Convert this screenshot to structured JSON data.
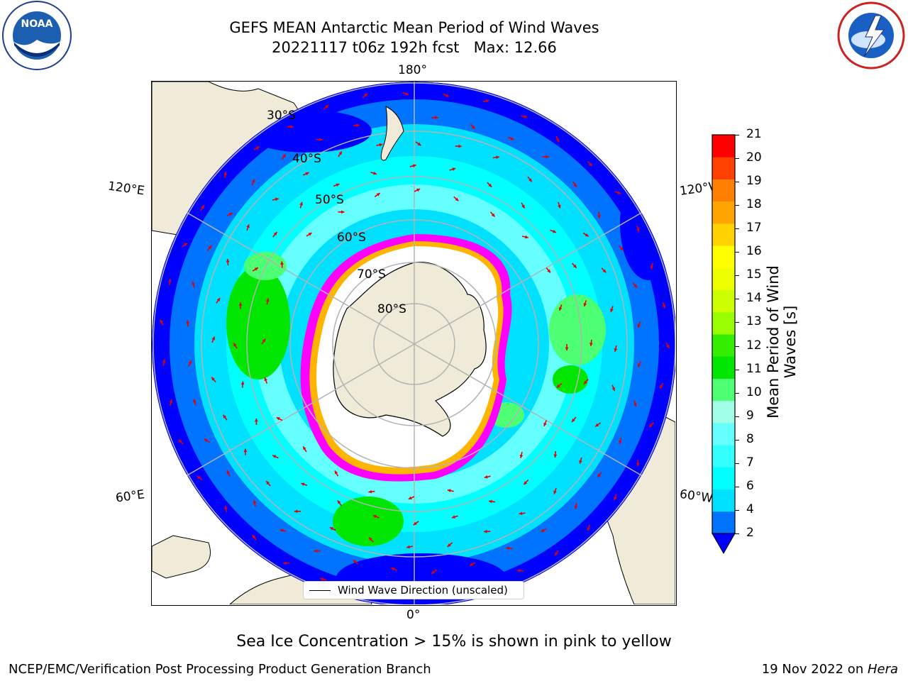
{
  "header": {
    "title_line1": "GEFS MEAN Antarctic Mean Period of Wind Waves",
    "title_line2": "20221117 t06z 192h fcst   Max: 12.66"
  },
  "logos": {
    "left": {
      "icon": "noaa-logo",
      "text": "NOAA",
      "ring_text": "NATIONAL OCEANIC AND ATMOSPHERIC ADMINISTRATION · U.S. DEPARTMENT OF COMMERCE"
    },
    "right": {
      "icon": "nws-logo",
      "ring_text": "NATIONAL WEATHER SERVICE"
    }
  },
  "map": {
    "projection": "south-polar-stereographic",
    "lon_labels": {
      "top": "180°",
      "bottom": "0°",
      "upper_left": "120°E",
      "upper_right": "120°W",
      "lower_left": "60°E",
      "lower_right": "60°W"
    },
    "lat_labels": [
      "30°S",
      "40°S",
      "50°S",
      "60°S",
      "70°S",
      "80°S"
    ],
    "colors": {
      "land": "#efebd8",
      "ocean_dark": "#0000ff",
      "ocean_mid": "#0073ff",
      "ocean_light": "#00e1ff",
      "ocean_pale": "#8affff",
      "high_green": "#00e600",
      "mid_green": "#4dff73",
      "sea_ice": [
        "#ff00ff",
        "#ff88ff",
        "#ffb400",
        "#ffff00"
      ],
      "arrow": "#e60000",
      "grid": "#b3b3b3"
    }
  },
  "colorbar": {
    "label": "Mean Period of Wind Waves [s]",
    "ticks": [
      "21",
      "20",
      "19",
      "18",
      "17",
      "16",
      "15",
      "14",
      "13",
      "12",
      "11",
      "10",
      "9",
      "8",
      "7",
      "6",
      "4",
      "2"
    ],
    "levels": [
      2,
      4,
      6,
      7,
      8,
      9,
      10,
      11,
      12,
      13,
      14,
      15,
      16,
      17,
      18,
      19,
      20,
      21
    ],
    "colors": [
      "#0073ff",
      "#00e1ff",
      "#00ffff",
      "#33ffff",
      "#66ffff",
      "#a0ffe6",
      "#4dff73",
      "#00e600",
      "#33ee00",
      "#99ff00",
      "#ccff00",
      "#eeff00",
      "#ffff00",
      "#ffd200",
      "#ffa500",
      "#ff8000",
      "#ff4000",
      "#ff0000"
    ],
    "extend_color": "#0000ff"
  },
  "legend": {
    "label": "Wind Wave Direction (unscaled)"
  },
  "footer": {
    "note": "Sea Ice Concentration > 15% is shown in pink to yellow",
    "credit": "NCEP/EMC/Verification Post Processing Product Generation Branch",
    "date": "19 Nov 2022 on ",
    "machine": "Hera"
  }
}
